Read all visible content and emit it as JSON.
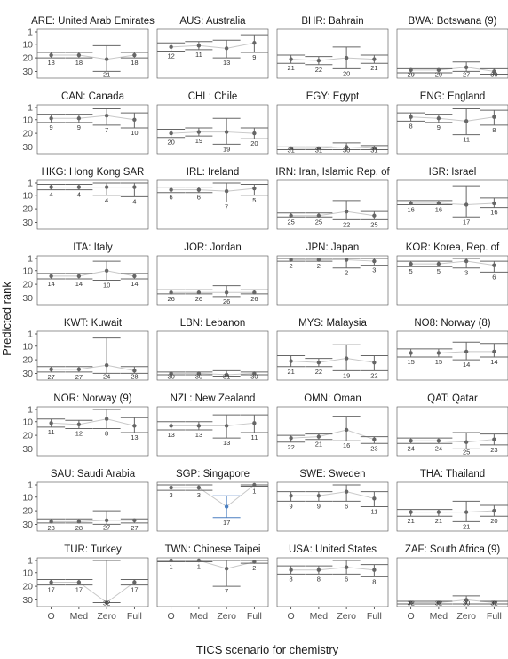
{
  "chart_data": {
    "type": "faceted interval plot",
    "ylabel": "Predicted rank",
    "xlabel": "TICS scenario for chemistry",
    "categories": [
      "O",
      "Med",
      "Zero",
      "Full"
    ],
    "yticks": [
      1,
      10,
      20,
      30
    ],
    "ylim": [
      1,
      33
    ],
    "y_reversed": true,
    "colors": {
      "default": "#666666",
      "highlight": "#4a7fc1",
      "connector": "#c8c8c8",
      "frame": "#4d4d4d"
    },
    "panels": [
      {
        "title": "ARE: United Arab Emirates",
        "ranks": [
          18,
          18,
          21,
          18
        ],
        "lo": [
          16,
          16,
          11,
          16
        ],
        "hi": [
          20,
          20,
          30,
          20
        ]
      },
      {
        "title": "AUS: Australia",
        "ranks": [
          12,
          11,
          13,
          9
        ],
        "lo": [
          9,
          8,
          7,
          3
        ],
        "hi": [
          15,
          14,
          20,
          16
        ]
      },
      {
        "title": "BHR: Bahrain",
        "ranks": [
          21,
          22,
          20,
          21
        ],
        "lo": [
          18,
          19,
          12,
          18
        ],
        "hi": [
          24,
          25,
          28,
          24
        ]
      },
      {
        "title": "BWA: Botswana (9)",
        "ranks": [
          29,
          29,
          27,
          30
        ],
        "lo": [
          28,
          28,
          23,
          28
        ],
        "hi": [
          31,
          31,
          30,
          32
        ]
      },
      {
        "title": "CAN: Canada",
        "ranks": [
          9,
          9,
          7,
          10
        ],
        "lo": [
          6,
          6,
          2,
          5
        ],
        "hi": [
          12,
          12,
          14,
          16
        ]
      },
      {
        "title": "CHL: Chile",
        "ranks": [
          20,
          19,
          19,
          20
        ],
        "lo": [
          17,
          16,
          9,
          16
        ],
        "hi": [
          23,
          22,
          28,
          24
        ]
      },
      {
        "title": "EGY: Egypt",
        "ranks": [
          31,
          31,
          30,
          31
        ],
        "lo": [
          30,
          30,
          27,
          29
        ],
        "hi": [
          32,
          32,
          32,
          32
        ]
      },
      {
        "title": "ENG: England",
        "ranks": [
          8,
          9,
          11,
          8
        ],
        "lo": [
          5,
          6,
          2,
          3
        ],
        "hi": [
          11,
          12,
          21,
          14
        ]
      },
      {
        "title": "HKG: Hong Kong SAR",
        "ranks": [
          4,
          4,
          4,
          4
        ],
        "lo": [
          2,
          2,
          1,
          1
        ],
        "hi": [
          6,
          6,
          10,
          11
        ]
      },
      {
        "title": "IRL: Ireland",
        "ranks": [
          6,
          6,
          7,
          5
        ],
        "lo": [
          4,
          4,
          1,
          2
        ],
        "hi": [
          8,
          8,
          15,
          10
        ]
      },
      {
        "title": "IRN: Iran, Islamic Rep. of",
        "ranks": [
          25,
          25,
          22,
          25
        ],
        "lo": [
          23,
          23,
          14,
          22
        ],
        "hi": [
          26,
          26,
          28,
          28
        ]
      },
      {
        "title": "ISR: Israel",
        "ranks": [
          16,
          16,
          17,
          16
        ],
        "lo": [
          14,
          14,
          3,
          12
        ],
        "hi": [
          17,
          17,
          26,
          19
        ]
      },
      {
        "title": "ITA: Italy",
        "ranks": [
          14,
          14,
          10,
          14
        ],
        "lo": [
          12,
          12,
          3,
          12
        ],
        "hi": [
          16,
          16,
          17,
          16
        ]
      },
      {
        "title": "JOR: Jordan",
        "ranks": [
          26,
          26,
          26,
          26
        ],
        "lo": [
          24,
          24,
          21,
          24
        ],
        "hi": [
          27,
          27,
          29,
          27
        ]
      },
      {
        "title": "JPN: Japan",
        "ranks": [
          2,
          2,
          2,
          3
        ],
        "lo": [
          1,
          1,
          1,
          1
        ],
        "hi": [
          3,
          3,
          8,
          6
        ]
      },
      {
        "title": "KOR: Korea, Rep. of",
        "ranks": [
          5,
          5,
          3,
          6
        ],
        "lo": [
          3,
          3,
          1,
          3
        ],
        "hi": [
          7,
          7,
          8,
          11
        ]
      },
      {
        "title": "KWT: Kuwait",
        "ranks": [
          27,
          27,
          24,
          28
        ],
        "lo": [
          25,
          25,
          4,
          25
        ],
        "hi": [
          29,
          29,
          30,
          30
        ]
      },
      {
        "title": "LBN: Lebanon",
        "ranks": [
          30,
          30,
          31,
          30
        ],
        "lo": [
          29,
          29,
          28,
          29
        ],
        "hi": [
          31,
          31,
          32,
          31
        ]
      },
      {
        "title": "MYS: Malaysia",
        "ranks": [
          21,
          22,
          19,
          22
        ],
        "lo": [
          17,
          19,
          9,
          17
        ],
        "hi": [
          25,
          25,
          28,
          28
        ]
      },
      {
        "title": "NO8: Norway (8)",
        "ranks": [
          15,
          15,
          14,
          14
        ],
        "lo": [
          12,
          12,
          7,
          8
        ],
        "hi": [
          18,
          18,
          20,
          18
        ]
      },
      {
        "title": "NOR: Norway (9)",
        "ranks": [
          11,
          12,
          8,
          13
        ],
        "lo": [
          8,
          9,
          1,
          7
        ],
        "hi": [
          14,
          15,
          15,
          18
        ]
      },
      {
        "title": "NZL: New Zealand",
        "ranks": [
          13,
          13,
          13,
          11
        ],
        "lo": [
          10,
          10,
          5,
          5
        ],
        "hi": [
          16,
          16,
          22,
          18
        ]
      },
      {
        "title": "OMN: Oman",
        "ranks": [
          22,
          21,
          16,
          23
        ],
        "lo": [
          20,
          19,
          6,
          21
        ],
        "hi": [
          25,
          23,
          24,
          26
        ]
      },
      {
        "title": "QAT: Qatar",
        "ranks": [
          24,
          24,
          25,
          23
        ],
        "lo": [
          22,
          22,
          18,
          19
        ],
        "hi": [
          26,
          26,
          30,
          27
        ]
      },
      {
        "title": "SAU: Saudi Arabia",
        "ranks": [
          28,
          28,
          27,
          27
        ],
        "lo": [
          26,
          26,
          20,
          26
        ],
        "hi": [
          29,
          29,
          30,
          29
        ]
      },
      {
        "title": "SGP: Singapore",
        "ranks": [
          3,
          3,
          17,
          1
        ],
        "lo": [
          1,
          1,
          9,
          1
        ],
        "hi": [
          5,
          5,
          25,
          2
        ],
        "highlight": [
          false,
          false,
          true,
          false
        ]
      },
      {
        "title": "SWE: Sweden",
        "ranks": [
          9,
          9,
          6,
          11
        ],
        "lo": [
          6,
          6,
          1,
          6
        ],
        "hi": [
          13,
          13,
          13,
          17
        ]
      },
      {
        "title": "THA: Thailand",
        "ranks": [
          21,
          21,
          21,
          20
        ],
        "lo": [
          19,
          19,
          13,
          16
        ],
        "hi": [
          24,
          24,
          28,
          24
        ]
      },
      {
        "title": "TUR: Turkey",
        "ranks": [
          17,
          17,
          32,
          17
        ],
        "lo": [
          15,
          15,
          1,
          15
        ],
        "hi": [
          19,
          19,
          32,
          19
        ]
      },
      {
        "title": "TWN: Chinese Taipei",
        "ranks": [
          1,
          1,
          7,
          2
        ],
        "lo": [
          1,
          1,
          1,
          1
        ],
        "hi": [
          2,
          2,
          20,
          3
        ]
      },
      {
        "title": "USA: United States",
        "ranks": [
          8,
          8,
          6,
          8
        ],
        "lo": [
          5,
          5,
          1,
          4
        ],
        "hi": [
          11,
          11,
          11,
          13
        ]
      },
      {
        "title": "ZAF: South Africa (9)",
        "ranks": [
          32,
          32,
          30,
          32
        ],
        "lo": [
          31,
          31,
          27,
          31
        ],
        "hi": [
          33,
          33,
          33,
          33
        ]
      }
    ]
  }
}
